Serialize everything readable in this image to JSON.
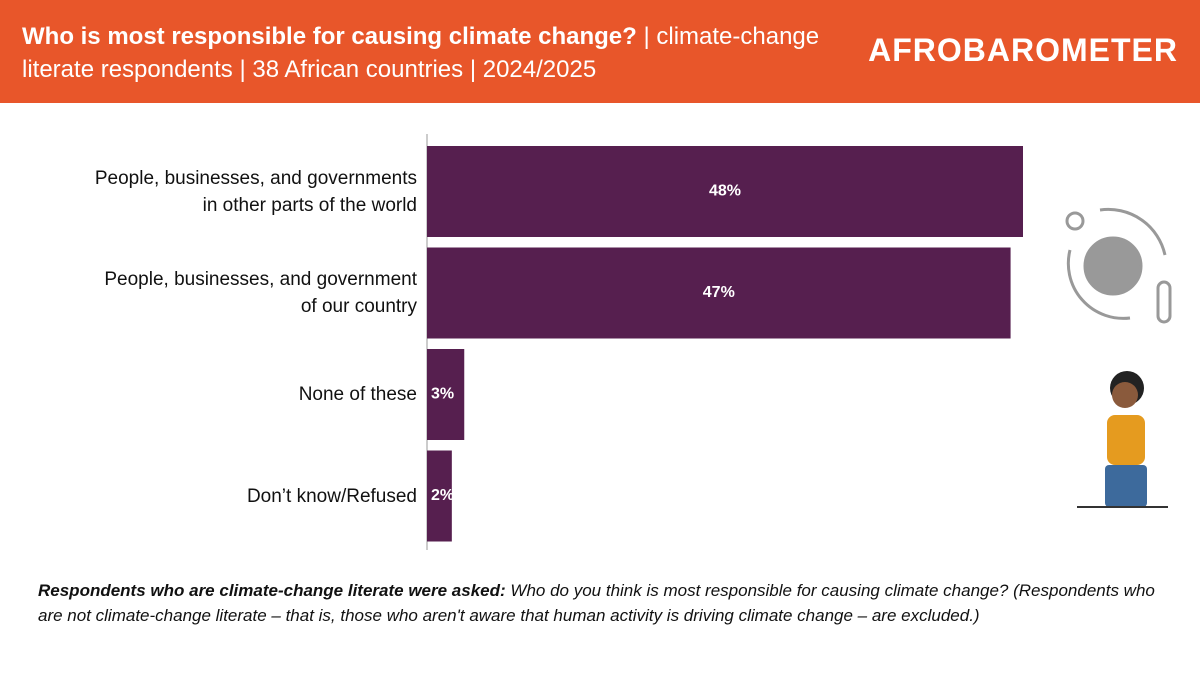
{
  "chart_data": {
    "type": "bar",
    "orientation": "horizontal",
    "title": "Who is most responsible for causing climate change?",
    "subtitle": "| climate-change literate respondents | 38 African countries | 2024/2025",
    "logo": "AFROBAROMETER",
    "categories": [
      "People, businesses, and governments in other parts of the world",
      "People, businesses, and government of our country",
      "None of these",
      "Don’t know/Refused"
    ],
    "values": [
      48,
      47,
      3,
      2
    ],
    "value_labels": [
      "48%",
      "47%",
      "3%",
      "2%"
    ],
    "color": "#561f4f",
    "header_color": "#e8562a",
    "note_label": "Respondents who are climate-change literate were asked:",
    "note": "Who do you think is most responsible for causing climate change? (Respondents who are not climate-change literate – that is, those who aren't aware that human activity is driving climate change – are excluded.)"
  }
}
